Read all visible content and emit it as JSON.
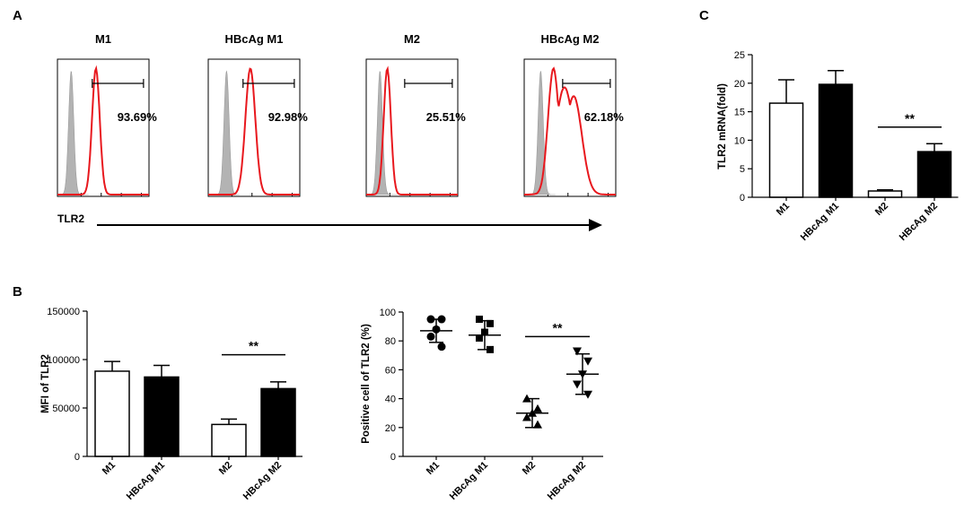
{
  "panel_labels": {
    "a": "A",
    "b": "B",
    "c": "C"
  },
  "colors": {
    "isotype_fill": "#b3b3b3",
    "tlr2_line": "#e8181e",
    "bar_open": "#ffffff",
    "bar_filled": "#000000"
  },
  "chart_data": [
    {
      "id": "histograms",
      "type": "histogram",
      "axis_label": "TLR2",
      "panels": [
        {
          "title": "M1",
          "percent_label": "93.69%",
          "percent_positive": 93.69,
          "iso_peak": 0.15,
          "peak": 0.42,
          "width": 0.07,
          "shoulder": 0
        },
        {
          "title": "HBcAg M1",
          "percent_label": "92.98%",
          "percent_positive": 92.98,
          "iso_peak": 0.2,
          "peak": 0.46,
          "width": 0.09,
          "shoulder": 0
        },
        {
          "title": "M2",
          "percent_label": "25.51%",
          "percent_positive": 25.51,
          "iso_peak": 0.15,
          "peak": 0.23,
          "width": 0.065,
          "shoulder": 0
        },
        {
          "title": "HBcAg M2",
          "percent_label": "62.18%",
          "percent_positive": 62.18,
          "iso_peak": 0.18,
          "peak": 0.32,
          "width": 0.1,
          "shoulder": 0.6
        }
      ]
    },
    {
      "id": "mfi",
      "type": "bar",
      "ylabel": "MFI of TLR2",
      "ylim": [
        0,
        150000
      ],
      "yticks": [
        0,
        50000,
        100000,
        150000
      ],
      "categories": [
        "M1",
        "HBcAg M1",
        "M2",
        "HBcAg M2"
      ],
      "values": [
        88000,
        82000,
        33000,
        70000
      ],
      "errors": [
        10000,
        12000,
        5500,
        7000
      ],
      "fills": [
        "open",
        "filled",
        "open",
        "filled"
      ],
      "significance": {
        "from": 2,
        "to": 3,
        "label": "**",
        "y": 105000
      }
    },
    {
      "id": "positive",
      "type": "scatter",
      "ylabel": "Positive cell of TLR2 (%)",
      "ylim": [
        0,
        100
      ],
      "yticks": [
        0,
        20,
        40,
        60,
        80,
        100
      ],
      "categories": [
        "M1",
        "HBcAg M1",
        "M2",
        "HBcAg M2"
      ],
      "markers": [
        "circle",
        "square",
        "triangle-up",
        "triangle-down"
      ],
      "points": [
        [
          95,
          95,
          88,
          83,
          76
        ],
        [
          95,
          92,
          86,
          82,
          74
        ],
        [
          40,
          33,
          30,
          27,
          22
        ],
        [
          73,
          66,
          57,
          50,
          43
        ]
      ],
      "means": [
        87,
        84,
        30,
        57
      ],
      "sds": [
        8,
        10,
        10,
        14
      ],
      "significance": {
        "from": 2,
        "to": 3,
        "label": "**",
        "y": 83
      }
    },
    {
      "id": "mrna",
      "type": "bar",
      "ylabel": "TLR2 mRNA(fold)",
      "ylim": [
        0,
        25
      ],
      "yticks": [
        0,
        5,
        10,
        15,
        20,
        25
      ],
      "categories": [
        "M1",
        "HBcAg M1",
        "M2",
        "HBcAg M2"
      ],
      "values": [
        16.5,
        19.8,
        1.1,
        8.0
      ],
      "errors": [
        4.1,
        2.4,
        0.2,
        1.4
      ],
      "fills": [
        "open",
        "filled",
        "open",
        "filled"
      ],
      "significance": {
        "from": 2,
        "to": 3,
        "label": "**",
        "y": 12.3
      }
    }
  ]
}
